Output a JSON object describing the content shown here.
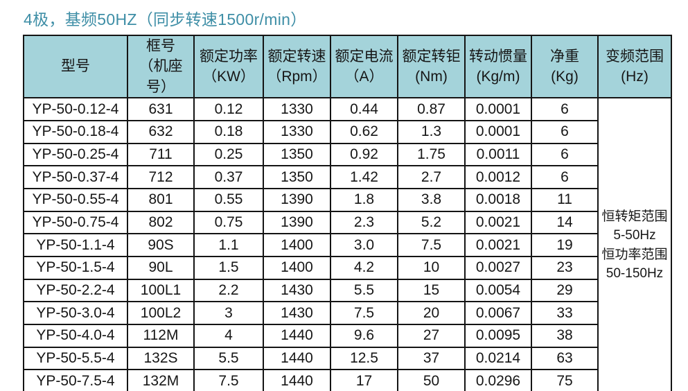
{
  "title": "4极，基频50HZ（同步转速1500r/min）",
  "colors": {
    "title": "#3e8ea6",
    "header_bg": "#a4d3da",
    "border": "#141414",
    "text": "#161616",
    "row_bg": "#ffffff"
  },
  "table": {
    "headers": [
      {
        "lines": [
          "型号"
        ]
      },
      {
        "lines": [
          "框号",
          "（机座号）"
        ]
      },
      {
        "lines": [
          "额定功率",
          "（KW）"
        ]
      },
      {
        "lines": [
          "额定转速",
          "（Rpm）"
        ]
      },
      {
        "lines": [
          "额定电流",
          "（A）"
        ]
      },
      {
        "lines": [
          "额定转钜",
          "(Nm)"
        ]
      },
      {
        "lines": [
          "转动惯量",
          "(Kg/m)"
        ]
      },
      {
        "lines": [
          "净重",
          "(Kg)"
        ]
      },
      {
        "lines": [
          "变频范围",
          "(Hz)"
        ]
      }
    ],
    "columns": [
      "model",
      "frame",
      "power",
      "speed",
      "current",
      "torque",
      "inertia",
      "weight"
    ],
    "rows": [
      [
        "YP-50-0.12-4",
        "631",
        "0.12",
        "1330",
        "0.44",
        "0.87",
        "0.0001",
        "6"
      ],
      [
        "YP-50-0.18-4",
        "632",
        "0.18",
        "1330",
        "0.62",
        "1.3",
        "0.0001",
        "6"
      ],
      [
        "YP-50-0.25-4",
        "711",
        "0.25",
        "1350",
        "0.92",
        "1.75",
        "0.0011",
        "6"
      ],
      [
        "YP-50-0.37-4",
        "712",
        "0.37",
        "1350",
        "1.42",
        "2.7",
        "0.0012",
        "6"
      ],
      [
        "YP-50-0.55-4",
        "801",
        "0.55",
        "1390",
        "1.8",
        "3.8",
        "0.0018",
        "11"
      ],
      [
        "YP-50-0.75-4",
        "802",
        "0.75",
        "1390",
        "2.3",
        "5.2",
        "0.0021",
        "14"
      ],
      [
        "YP-50-1.1-4",
        "90S",
        "1.1",
        "1400",
        "3.0",
        "7.5",
        "0.0021",
        "19"
      ],
      [
        "YP-50-1.5-4",
        "90L",
        "1.5",
        "1400",
        "4.2",
        "10",
        "0.0027",
        "23"
      ],
      [
        "YP-50-2.2-4",
        "100L1",
        "2.2",
        "1430",
        "5.5",
        "15",
        "0.0054",
        "29"
      ],
      [
        "YP-50-3.0-4",
        "100L2",
        "3",
        "1430",
        "7.5",
        "20",
        "0.0067",
        "33"
      ],
      [
        "YP-50-4.0-4",
        "112M",
        "4",
        "1440",
        "9.6",
        "27",
        "0.0095",
        "38"
      ],
      [
        "YP-50-5.5-4",
        "132S",
        "5.5",
        "1440",
        "12.5",
        "37",
        "0.0214",
        "63"
      ],
      [
        "YP-50-7.5-4",
        "132M",
        "7.5",
        "1440",
        "17",
        "50",
        "0.0296",
        "75"
      ]
    ],
    "frequency_range_lines": [
      "恒转矩范围",
      "5-50Hz",
      "恒功率范围",
      "50-150Hz"
    ]
  }
}
